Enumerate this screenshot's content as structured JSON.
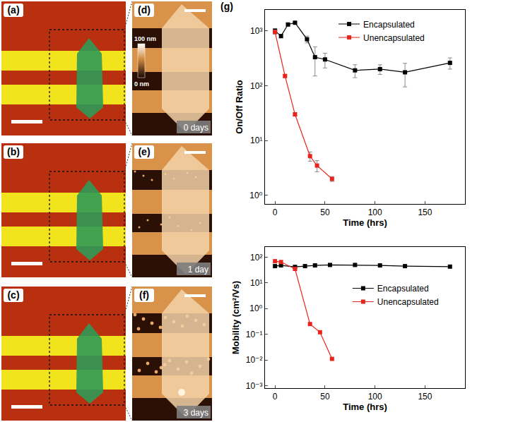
{
  "image_panels": [
    {
      "label": "(a)"
    },
    {
      "label": "(b)"
    },
    {
      "label": "(c)"
    },
    {
      "label": "(d)",
      "caption": "0 days",
      "colorbar_labels": [
        "100 nm",
        "0 nm"
      ]
    },
    {
      "label": "(e)",
      "caption": "1 day"
    },
    {
      "label": "(f)",
      "caption": "3 days"
    }
  ],
  "chart_panel_label": "(g)",
  "chart_data": [
    {
      "type": "line",
      "xlabel": "Time (hrs)",
      "ylabel": "On/Off Ratio",
      "log": "y",
      "grid": false,
      "legend": "top",
      "xlim": [
        -10,
        190
      ],
      "xticks": [
        0,
        50,
        100,
        150
      ],
      "ylim": [
        0.7,
        2400
      ],
      "yticks": [
        {
          "value": 1,
          "label": "10⁰"
        },
        {
          "value": 10,
          "label": "10¹"
        },
        {
          "value": 100,
          "label": "10²"
        },
        {
          "value": 1000,
          "label": "10³"
        }
      ],
      "series": [
        {
          "name": "Encapsulated",
          "color": "#000000",
          "marker": "square",
          "line_style": "solid",
          "x": [
            0,
            6,
            13,
            20,
            32,
            40,
            50,
            80,
            105,
            130,
            175
          ],
          "values": [
            1000,
            800,
            1300,
            1400,
            700,
            330,
            300,
            190,
            200,
            175,
            260
          ],
          "errors": [
            100,
            60,
            80,
            60,
            100,
            180,
            90,
            50,
            40,
            80,
            60
          ]
        },
        {
          "name": "Unencapsulated",
          "color": "#e8251c",
          "marker": "square",
          "line_style": "solid",
          "x": [
            0,
            10,
            20,
            35,
            42,
            57
          ],
          "values": [
            950,
            150,
            30,
            5.2,
            3.5,
            2
          ],
          "errors": [
            80,
            10,
            2,
            1,
            0.8,
            0.2
          ]
        }
      ]
    },
    {
      "type": "line",
      "xlabel": "Time (hrs)",
      "ylabel": "Mobility (cm²/Vs)",
      "log": "y",
      "grid": false,
      "legend": "right",
      "xlim": [
        -10,
        190
      ],
      "xticks": [
        0,
        50,
        100,
        150
      ],
      "ylim": [
        0.0008,
        250
      ],
      "yticks": [
        {
          "value": 0.001,
          "label": "10⁻³"
        },
        {
          "value": 0.01,
          "label": "10⁻²"
        },
        {
          "value": 0.1,
          "label": "10⁻¹"
        },
        {
          "value": 1,
          "label": "10⁰"
        },
        {
          "value": 10,
          "label": "10¹"
        },
        {
          "value": 100,
          "label": "10²"
        }
      ],
      "series": [
        {
          "name": "Encapsulated",
          "color": "#000000",
          "marker": "square",
          "line_style": "solid",
          "x": [
            0,
            6,
            20,
            30,
            40,
            55,
            80,
            105,
            130,
            175
          ],
          "values": [
            45,
            48,
            42,
            45,
            48,
            50,
            50,
            48,
            45,
            43
          ]
        },
        {
          "name": "Unencapsulated",
          "color": "#e8251c",
          "marker": "square",
          "line_style": "solid",
          "x": [
            0,
            6,
            20,
            35,
            45,
            57
          ],
          "values": [
            70,
            65,
            35,
            0.25,
            0.12,
            0.011
          ]
        }
      ]
    }
  ]
}
